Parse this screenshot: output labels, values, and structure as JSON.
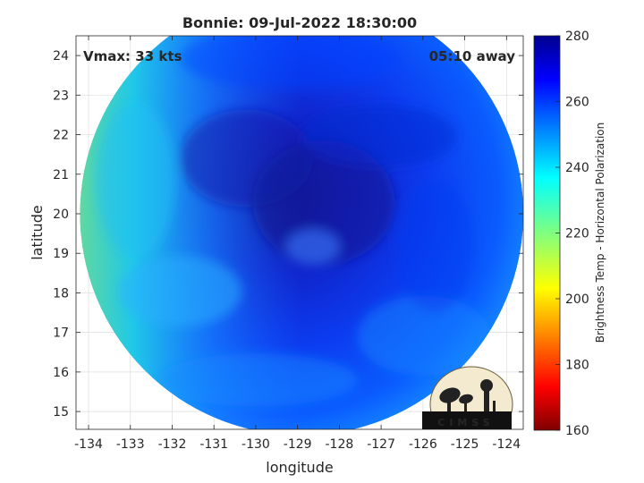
{
  "chart_data": {
    "type": "heatmap",
    "title": "Bonnie: 09-Jul-2022 18:30:00",
    "xlabel": "longitude",
    "ylabel": "latitude",
    "xlim": [
      -134.3,
      -123.6
    ],
    "ylim": [
      14.55,
      24.5
    ],
    "x_ticks": [
      -134,
      -133,
      -132,
      -131,
      -130,
      -129,
      -128,
      -127,
      -126,
      -125,
      -124
    ],
    "y_ticks": [
      15,
      16,
      17,
      18,
      19,
      20,
      21,
      22,
      23,
      24
    ],
    "grid": true,
    "annotations": {
      "vmax": "Vmax: 33 kts",
      "time_away": "05:10 away"
    },
    "center": {
      "lon": -128.9,
      "lat": 20.0
    },
    "swath_radius_deg": 5.45,
    "colorbar": {
      "label": "Brightness Temp - Horizontal Polarization",
      "min": 160,
      "max": 280,
      "ticks": [
        160,
        180,
        200,
        220,
        240,
        260,
        280
      ],
      "colormap": "jet"
    }
  },
  "logo": {
    "text": "CIMSS"
  },
  "colors": {
    "deep": "#1414a8",
    "mid": "#0a48ff",
    "light": "#18c8f0",
    "edge": "#5ad2a8"
  }
}
